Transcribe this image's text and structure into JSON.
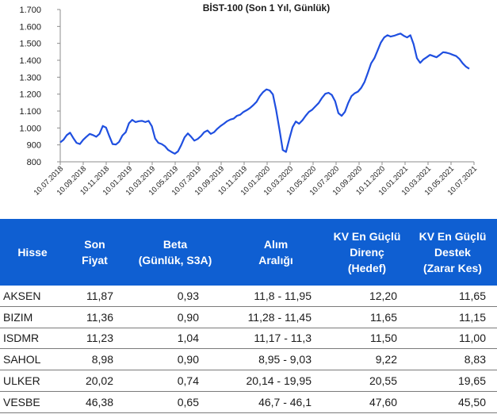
{
  "chart_data": {
    "type": "line",
    "title": "BİST-100 (Son 1 Yıl, Günlük)",
    "ylim": [
      800,
      1700
    ],
    "y_ticks": [
      "800",
      "900",
      "1.000",
      "1.100",
      "1.200",
      "1.300",
      "1.400",
      "1.500",
      "1.600",
      "1.700"
    ],
    "y_tick_values": [
      800,
      900,
      1000,
      1100,
      1200,
      1300,
      1400,
      1500,
      1600,
      1700
    ],
    "x_ticks": [
      "10.07.2018",
      "10.09.2018",
      "10.11.2018",
      "10.01.2019",
      "10.03.2019",
      "10.05.2019",
      "10.07.2019",
      "10.09.2019",
      "10.11.2019",
      "10.01.2020",
      "10.03.2020",
      "10.05.2020",
      "10.07.2020",
      "10.09.2020",
      "10.11.2020",
      "10.01.2021",
      "10.03.2021",
      "10.05.2021",
      "10.07.2021"
    ],
    "series_color": "#1f4fe0",
    "series": [
      {
        "values": [
          915,
          930,
          958,
          972,
          940,
          912,
          905,
          930,
          948,
          965,
          958,
          948,
          965,
          1012,
          1002,
          952,
          905,
          902,
          918,
          955,
          975,
          1028,
          1048,
          1035,
          1040,
          1042,
          1035,
          1042,
          1010,
          938,
          912,
          905,
          892,
          870,
          858,
          848,
          862,
          900,
          945,
          968,
          948,
          925,
          935,
          952,
          975,
          985,
          965,
          975,
          995,
          1012,
          1025,
          1040,
          1050,
          1055,
          1072,
          1078,
          1095,
          1105,
          1118,
          1135,
          1155,
          1188,
          1212,
          1228,
          1222,
          1198,
          1105,
          990,
          870,
          858,
          935,
          1005,
          1038,
          1025,
          1045,
          1072,
          1095,
          1108,
          1128,
          1148,
          1178,
          1202,
          1208,
          1195,
          1158,
          1088,
          1072,
          1095,
          1148,
          1188,
          1205,
          1215,
          1238,
          1272,
          1325,
          1382,
          1412,
          1458,
          1505,
          1535,
          1548,
          1540,
          1545,
          1552,
          1558,
          1545,
          1535,
          1548,
          1495,
          1412,
          1385,
          1405,
          1418,
          1432,
          1425,
          1418,
          1432,
          1448,
          1445,
          1440,
          1432,
          1425,
          1408,
          1382,
          1362,
          1350
        ]
      }
    ]
  },
  "table": {
    "headers": [
      [
        "Hisse"
      ],
      [
        "Son",
        "Fiyat"
      ],
      [
        "Beta",
        "(Günlük, S3A)"
      ],
      [
        "Alım",
        "Aralığı"
      ],
      [
        "KV En Güçlü",
        "Direnç",
        "(Hedef)"
      ],
      [
        "KV En Güçlü",
        "Destek",
        "(Zarar Kes)"
      ]
    ],
    "rows": [
      [
        "AKSEN",
        "11,87",
        "0,93",
        "11,8 - 11,95",
        "12,20",
        "11,65"
      ],
      [
        "BIZIM",
        "11,36",
        "0,90",
        "11,28 - 11,45",
        "11,65",
        "11,15"
      ],
      [
        "ISDMR",
        "11,23",
        "1,04",
        "11,17 - 11,3",
        "11,50",
        "11,00"
      ],
      [
        "SAHOL",
        "8,98",
        "0,90",
        "8,95 - 9,03",
        "9,22",
        "8,83"
      ],
      [
        "ULKER",
        "20,02",
        "0,74",
        "20,14 - 19,95",
        "20,55",
        "19,65"
      ],
      [
        "VESBE",
        "46,38",
        "0,65",
        "46,7 - 46,1",
        "47,60",
        "45,50"
      ]
    ]
  }
}
